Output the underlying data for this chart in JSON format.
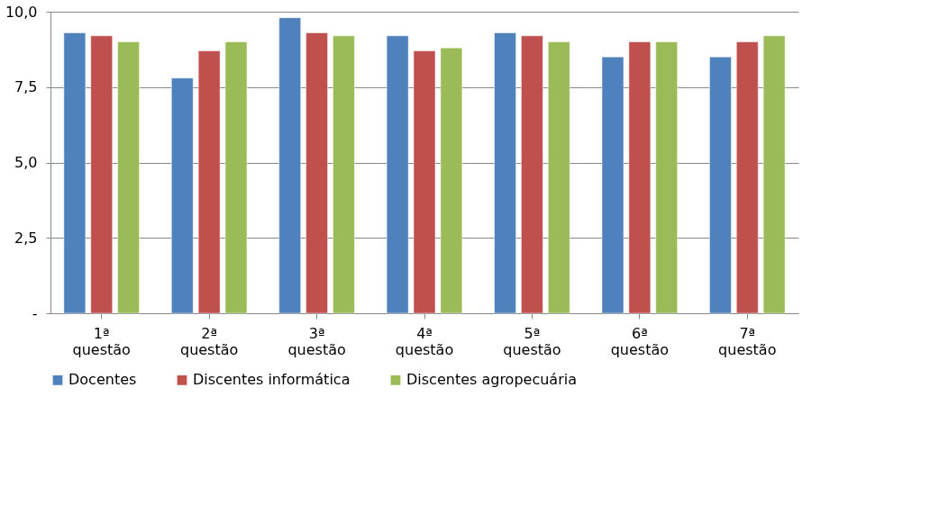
{
  "chart_data": {
    "type": "bar",
    "categories": [
      "1ª questão",
      "2ª questão",
      "3ª questão",
      "4ª questão",
      "5ª questão",
      "6ª questão",
      "7ª questão"
    ],
    "series": [
      {
        "name": "Docentes",
        "color": "#4f81bd",
        "values": [
          9.3,
          7.8,
          9.8,
          9.2,
          9.3,
          8.5,
          8.5
        ]
      },
      {
        "name": "Discentes informática",
        "color": "#c0504d",
        "values": [
          9.2,
          8.7,
          9.3,
          8.7,
          9.2,
          9.0,
          9.0
        ]
      },
      {
        "name": "Discentes agropecuária",
        "color": "#9bbb59",
        "values": [
          9.0,
          9.0,
          9.2,
          8.8,
          9.0,
          9.0,
          9.2
        ]
      }
    ],
    "ylim": [
      0,
      10
    ],
    "yticks": [
      {
        "value": 0,
        "label": "-"
      },
      {
        "value": 2.5,
        "label": "2,5"
      },
      {
        "value": 5,
        "label": "5,0"
      },
      {
        "value": 7.5,
        "label": "7,5"
      },
      {
        "value": 10,
        "label": "10,0"
      }
    ],
    "grid": "y",
    "legend": "bottom"
  }
}
